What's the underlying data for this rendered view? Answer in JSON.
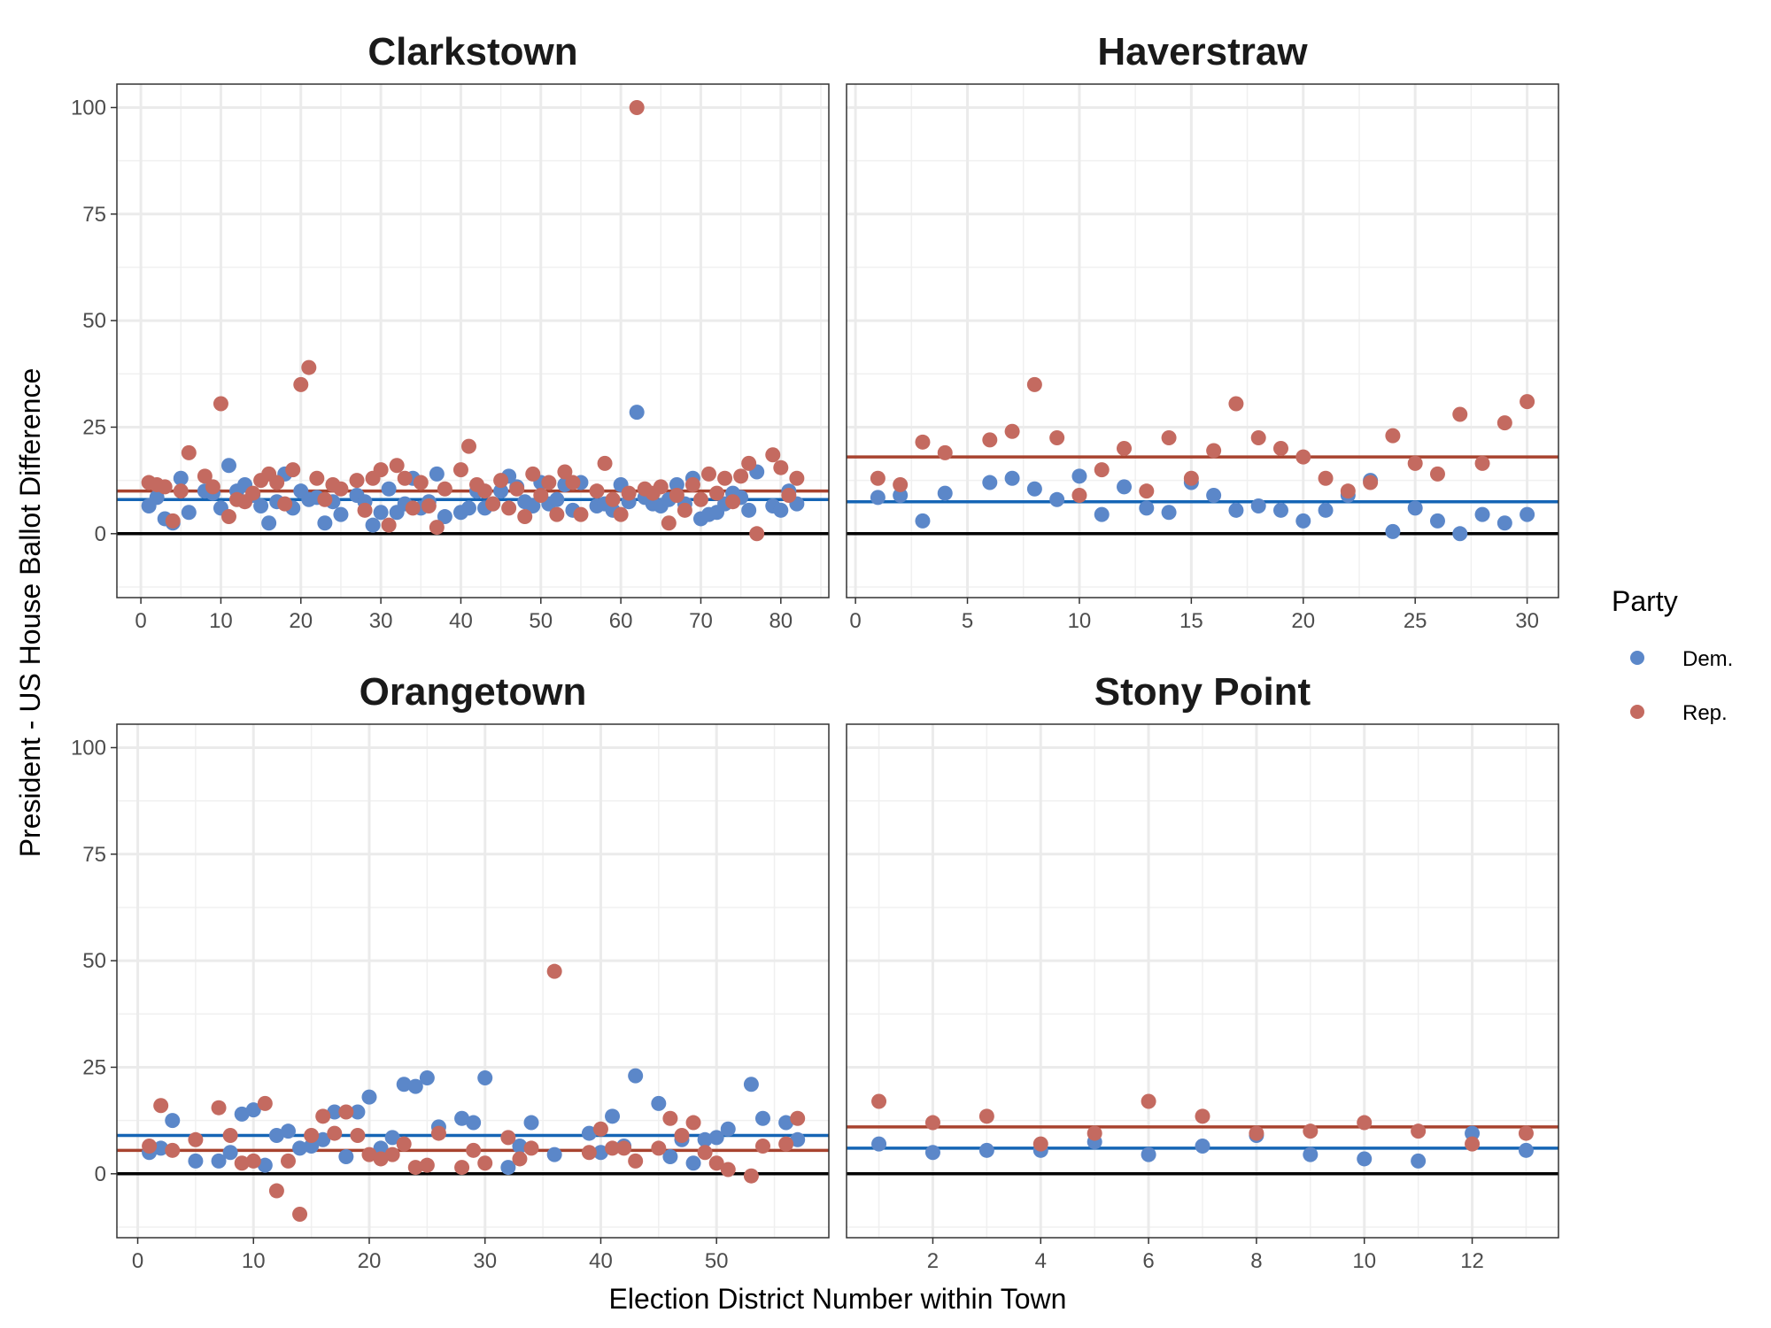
{
  "chart_data": {
    "type": "scatter",
    "ylabel": "President - US House Ballot Difference",
    "xlabel": "Election District Number within Town",
    "legend": {
      "title": "Party",
      "placement": "right",
      "entries": [
        {
          "name": "Dem.",
          "color": "#5b87c9"
        },
        {
          "name": "Rep.",
          "color": "#c46a60"
        }
      ]
    },
    "reference_line": {
      "y": 0,
      "color": "#000000"
    },
    "mean_line_colors": {
      "Dem.": "#1565b5",
      "Rep.": "#a8432f"
    },
    "point_colors": {
      "Dem.": "#5b87c9",
      "Rep.": "#c46a60"
    },
    "ylim": [
      -15,
      105.5
    ],
    "yticks": [
      0,
      25,
      50,
      75,
      100
    ],
    "grid": true,
    "facets": [
      {
        "title": "Clarkstown",
        "xlim": [
          -3,
          86
        ],
        "xticks": [
          0,
          10,
          20,
          30,
          40,
          50,
          60,
          70,
          80
        ],
        "mean": {
          "Dem.": 8,
          "Rep.": 10
        },
        "series": [
          {
            "name": "Dem.",
            "x": [
              1,
              2,
              3,
              4,
              5,
              6,
              8,
              9,
              10,
              11,
              12,
              13,
              14,
              15,
              16,
              17,
              18,
              19,
              20,
              21,
              22,
              23,
              24,
              25,
              27,
              28,
              29,
              30,
              31,
              32,
              33,
              34,
              35,
              36,
              37,
              38,
              40,
              41,
              42,
              43,
              44,
              45,
              46,
              47,
              48,
              49,
              50,
              51,
              52,
              53,
              54,
              55,
              57,
              58,
              59,
              60,
              61,
              62,
              63,
              64,
              65,
              66,
              67,
              68,
              69,
              70,
              71,
              72,
              73,
              74,
              75,
              76,
              77,
              79,
              80,
              81,
              82
            ],
            "y": [
              6.5,
              8.5,
              3.5,
              2.5,
              13,
              5,
              10,
              9.5,
              6,
              16,
              10,
              11.5,
              9,
              6.5,
              2.5,
              7.5,
              14,
              6,
              10,
              8,
              8.5,
              2.5,
              7.5,
              4.5,
              9,
              7.5,
              2,
              5,
              10.5,
              5,
              7,
              13,
              6,
              7.5,
              14,
              4,
              5,
              6,
              10,
              6,
              7,
              10,
              13.5,
              11,
              7.5,
              6.5,
              12,
              7,
              8,
              11.5,
              5.5,
              12,
              6.5,
              7,
              5.5,
              11.5,
              7.5,
              28.5,
              8.5,
              7,
              6.5,
              8,
              11.5,
              7,
              13,
              3.5,
              4.5,
              5,
              7,
              9.5,
              8.5,
              5.5,
              14.5,
              6.5,
              5.5,
              10,
              7
            ]
          },
          {
            "name": "Rep.",
            "x": [
              1,
              2,
              3,
              4,
              5,
              6,
              8,
              9,
              10,
              11,
              12,
              13,
              14,
              15,
              16,
              17,
              18,
              19,
              20,
              21,
              22,
              23,
              24,
              25,
              27,
              28,
              29,
              30,
              31,
              32,
              33,
              34,
              35,
              36,
              37,
              38,
              40,
              41,
              42,
              43,
              44,
              45,
              46,
              47,
              48,
              49,
              50,
              51,
              52,
              53,
              54,
              55,
              57,
              58,
              59,
              60,
              61,
              62,
              63,
              64,
              65,
              66,
              67,
              68,
              69,
              70,
              71,
              72,
              73,
              74,
              75,
              76,
              77,
              79,
              80,
              81,
              82
            ],
            "y": [
              12,
              11.5,
              11,
              3,
              10,
              19,
              13.5,
              11,
              30.5,
              4,
              8,
              7.5,
              9.5,
              12.5,
              14,
              12,
              7,
              15,
              35,
              39,
              13,
              8,
              11.5,
              10.5,
              12.5,
              5.5,
              13,
              15,
              2,
              16,
              13,
              6,
              12,
              6.5,
              1.5,
              10.5,
              15,
              20.5,
              11.5,
              10,
              7,
              12.5,
              6,
              10.5,
              4,
              14,
              9,
              12,
              4.5,
              14.5,
              12,
              4.5,
              10,
              16.5,
              8,
              4.5,
              9.5,
              100,
              10.5,
              9.5,
              11,
              2.5,
              9,
              5.5,
              11.5,
              8,
              14,
              9.5,
              13,
              7.5,
              13.5,
              16.5,
              0,
              18.5,
              15.5,
              9,
              13
            ]
          }
        ]
      },
      {
        "title": "Haverstraw",
        "xlim": [
          -0.4,
          31.4
        ],
        "xticks": [
          0,
          5,
          10,
          15,
          20,
          25,
          30
        ],
        "mean": {
          "Dem.": 7.5,
          "Rep.": 18
        },
        "series": [
          {
            "name": "Dem.",
            "x": [
              1,
              2,
              3,
              4,
              6,
              7,
              8,
              9,
              10,
              11,
              12,
              13,
              14,
              15,
              16,
              17,
              18,
              19,
              20,
              21,
              22,
              23,
              24,
              25,
              26,
              27,
              28,
              29,
              30
            ],
            "y": [
              8.5,
              9,
              3,
              9.5,
              12,
              13,
              10.5,
              8,
              13.5,
              4.5,
              11,
              6,
              5,
              12,
              9,
              5.5,
              6.5,
              5.5,
              3,
              5.5,
              9,
              12.5,
              0.5,
              6,
              3,
              0,
              4.5,
              2.5,
              4.5
            ]
          },
          {
            "name": "Rep.",
            "x": [
              1,
              2,
              3,
              4,
              6,
              7,
              8,
              9,
              10,
              11,
              12,
              13,
              14,
              15,
              16,
              17,
              18,
              19,
              20,
              21,
              22,
              23,
              24,
              25,
              26,
              27,
              28,
              29,
              30
            ],
            "y": [
              13,
              11.5,
              21.5,
              19,
              22,
              24,
              35,
              22.5,
              9,
              15,
              20,
              10,
              22.5,
              13,
              19.5,
              30.5,
              22.5,
              20,
              18,
              13,
              10,
              12,
              23,
              16.5,
              14,
              28,
              16.5,
              26,
              31
            ]
          }
        ]
      },
      {
        "title": "Orangetown",
        "xlim": [
          -1.8,
          59.7
        ],
        "xticks": [
          0,
          10,
          20,
          30,
          40,
          50
        ],
        "mean": {
          "Dem.": 9,
          "Rep.": 5.5
        },
        "series": [
          {
            "name": "Dem.",
            "x": [
              1,
              2,
              3,
              5,
              7,
              8,
              9,
              10,
              11,
              12,
              13,
              14,
              15,
              16,
              17,
              18,
              19,
              20,
              21,
              22,
              23,
              24,
              25,
              26,
              28,
              29,
              30,
              32,
              33,
              34,
              36,
              39,
              40,
              41,
              42,
              43,
              45,
              46,
              47,
              48,
              49,
              50,
              51,
              53,
              54,
              56,
              57
            ],
            "y": [
              5,
              6,
              12.5,
              3,
              3,
              5,
              14,
              15,
              2,
              9,
              10,
              6,
              6.5,
              8,
              14.5,
              4,
              14.5,
              18,
              6,
              8.5,
              21,
              20.5,
              22.5,
              11,
              13,
              12,
              22.5,
              1.5,
              6.5,
              12,
              4.5,
              9.5,
              5,
              13.5,
              6.5,
              23,
              16.5,
              4,
              8,
              2.5,
              8,
              8.5,
              10.5,
              21,
              13,
              12,
              8
            ]
          },
          {
            "name": "Rep.",
            "x": [
              1,
              2,
              3,
              5,
              7,
              8,
              9,
              10,
              11,
              12,
              13,
              14,
              15,
              16,
              17,
              18,
              19,
              20,
              21,
              22,
              23,
              24,
              25,
              26,
              28,
              29,
              30,
              32,
              33,
              34,
              36,
              39,
              40,
              41,
              42,
              43,
              45,
              46,
              47,
              48,
              49,
              50,
              51,
              53,
              54,
              56,
              57
            ],
            "y": [
              6.5,
              16,
              5.5,
              8,
              15.5,
              9,
              2.5,
              3,
              16.5,
              -4,
              3,
              -9.5,
              9,
              13.5,
              9.5,
              14.5,
              9,
              4.5,
              3.5,
              4.5,
              7,
              1.5,
              2,
              9.5,
              1.5,
              5.5,
              2.5,
              8.5,
              3.5,
              6,
              47.5,
              5,
              10.5,
              6,
              6,
              3,
              6,
              13,
              9,
              12,
              5,
              2.5,
              1,
              -0.5,
              6.5,
              7,
              13
            ]
          }
        ]
      },
      {
        "title": "Stony Point",
        "xlim": [
          0.4,
          13.6
        ],
        "xticks": [
          2,
          4,
          6,
          8,
          10,
          12
        ],
        "mean": {
          "Dem.": 6,
          "Rep.": 11
        },
        "series": [
          {
            "name": "Dem.",
            "x": [
              1,
              2,
              3,
              4,
              5,
              6,
              7,
              8,
              9,
              10,
              11,
              12,
              13
            ],
            "y": [
              7,
              5,
              5.5,
              5.5,
              7.5,
              4.5,
              6.5,
              9,
              4.5,
              3.5,
              3,
              9.5,
              5.5
            ]
          },
          {
            "name": "Rep.",
            "x": [
              1,
              2,
              3,
              4,
              5,
              6,
              7,
              8,
              9,
              10,
              11,
              12,
              13
            ],
            "y": [
              17,
              12,
              13.5,
              7,
              9.5,
              17,
              13.5,
              9.5,
              10,
              12,
              10,
              7,
              9.5
            ]
          }
        ]
      }
    ]
  }
}
